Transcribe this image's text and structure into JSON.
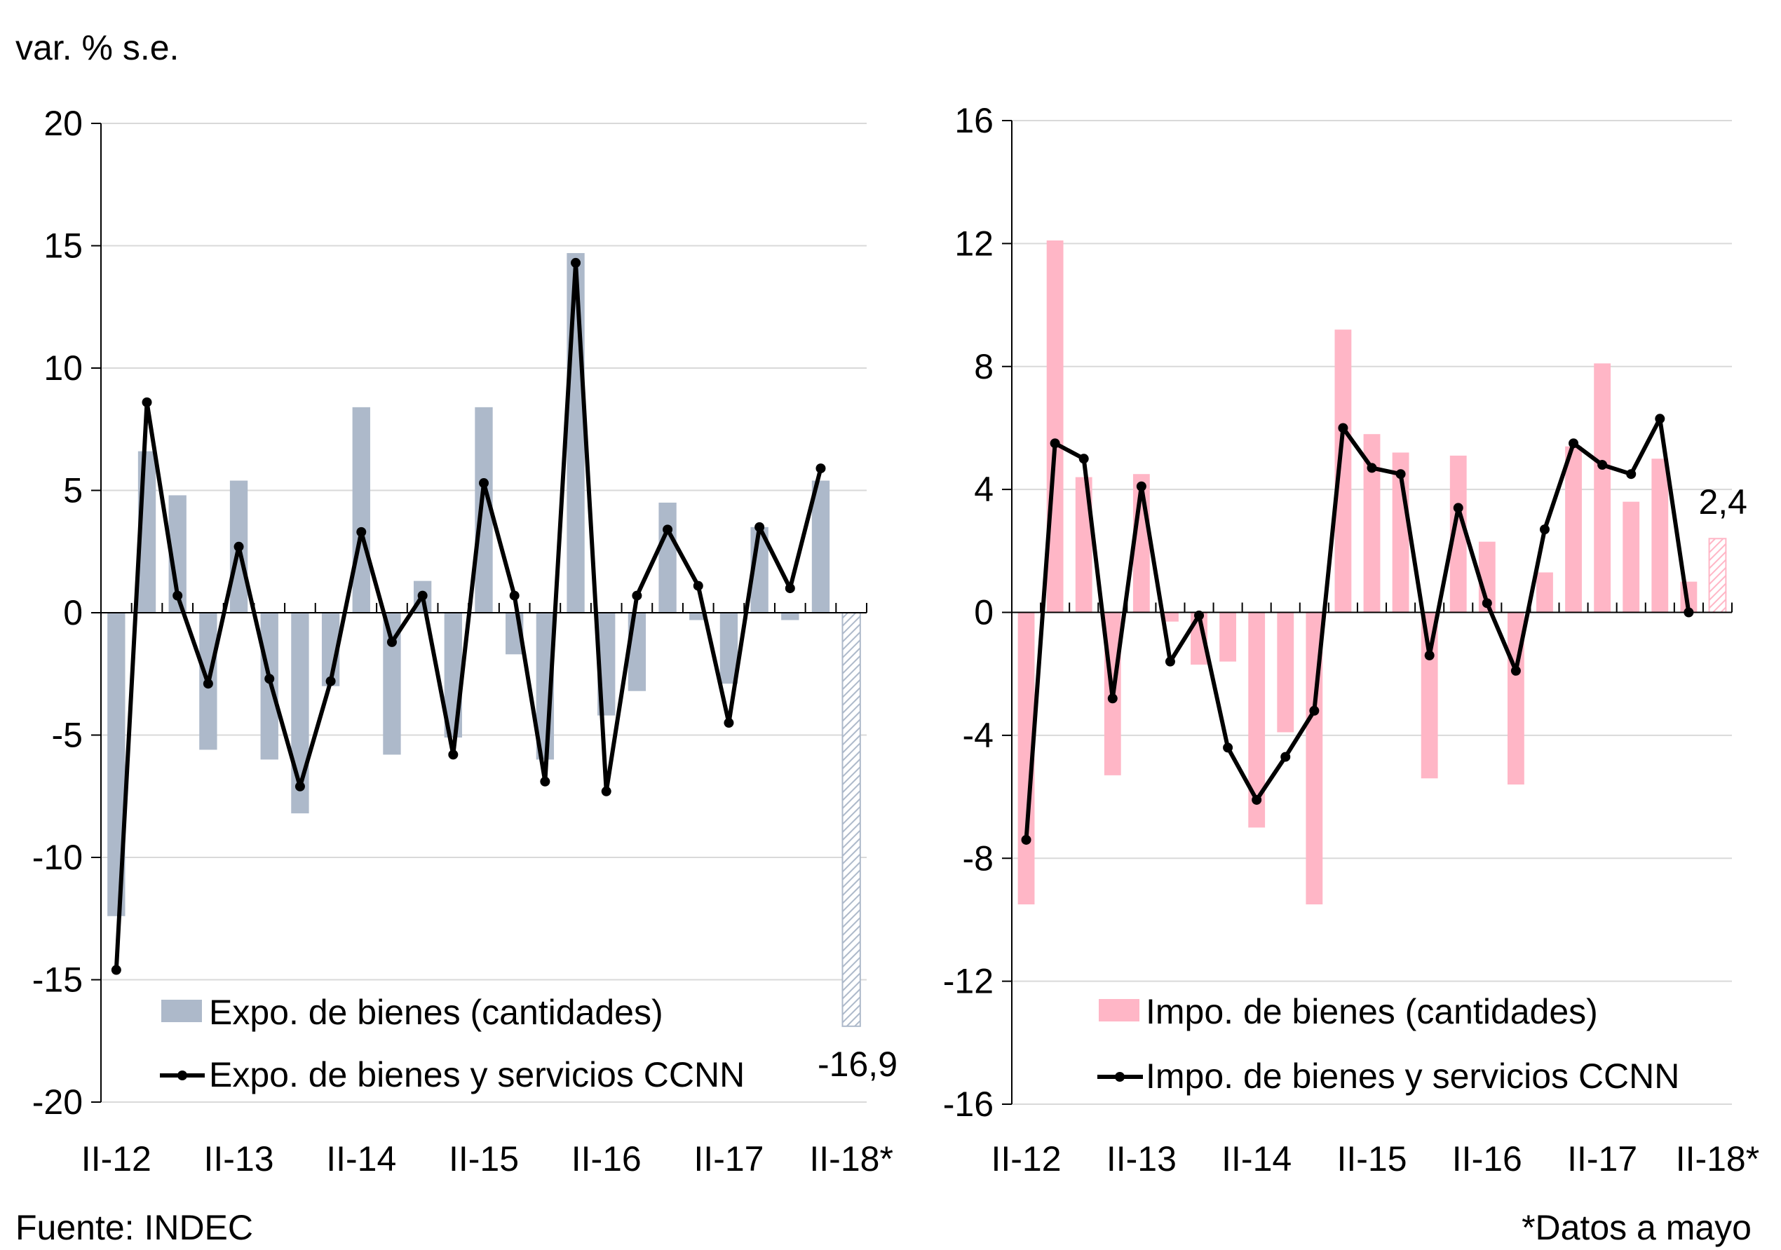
{
  "header": {
    "unit_label": "var. % s.e."
  },
  "footer": {
    "source": "Fuente:  INDEC",
    "note": "*Datos a mayo"
  },
  "colors": {
    "exports_bar": "#ADB9CA",
    "imports_bar": "#FFB6C6",
    "line": "#000000",
    "exports_annotation": "#44546A",
    "imports_annotation": "#F4617F"
  },
  "chart_data": [
    {
      "type": "bar+line",
      "categories": [
        "II-12",
        "III-12",
        "IV-12",
        "I-13",
        "II-13",
        "III-13",
        "IV-13",
        "I-14",
        "II-14",
        "III-14",
        "IV-14",
        "I-15",
        "II-15",
        "III-15",
        "IV-15",
        "I-16",
        "II-16",
        "III-16",
        "IV-16",
        "I-17",
        "II-17",
        "III-17",
        "IV-17",
        "I-18",
        "II-18*"
      ],
      "xtick_labels": [
        "II-12",
        "II-13",
        "II-14",
        "II-15",
        "II-16",
        "II-17",
        "II-18*"
      ],
      "ylim": [
        -20,
        20
      ],
      "yticks": [
        "20",
        "15",
        "10",
        "5",
        "0",
        "-5",
        "-10",
        "-15",
        "-20"
      ],
      "ytick_values": [
        20,
        15,
        10,
        5,
        0,
        -5,
        -10,
        -15,
        -20
      ],
      "grid": true,
      "series": [
        {
          "name": "Expo. de bienes (cantidades)",
          "kind": "bar",
          "values": [
            -12.4,
            6.6,
            4.8,
            -5.6,
            5.4,
            -6.0,
            -8.2,
            -3.0,
            8.4,
            -5.8,
            1.3,
            -5.1,
            8.4,
            -1.7,
            -6.0,
            14.7,
            -4.2,
            -3.2,
            4.5,
            -0.3,
            -2.9,
            3.5,
            -0.3,
            5.4,
            -16.9
          ],
          "hatched_last": true
        },
        {
          "name": "Expo. de bienes  y servicios CCNN",
          "kind": "line",
          "values": [
            -14.6,
            8.6,
            0.7,
            -2.9,
            2.7,
            -2.7,
            -7.1,
            -2.8,
            3.3,
            -1.2,
            0.7,
            -5.8,
            5.3,
            0.7,
            -6.9,
            14.3,
            -7.3,
            0.7,
            3.4,
            1.1,
            -4.5,
            3.5,
            1.0,
            5.9,
            null
          ]
        }
      ],
      "annotation": "-16,9",
      "legend": "bottom-left"
    },
    {
      "type": "bar+line",
      "categories": [
        "II-12",
        "III-12",
        "IV-12",
        "I-13",
        "II-13",
        "III-13",
        "IV-13",
        "I-14",
        "II-14",
        "III-14",
        "IV-14",
        "I-15",
        "II-15",
        "III-15",
        "IV-15",
        "I-16",
        "II-16",
        "III-16",
        "IV-16",
        "I-17",
        "II-17",
        "III-17",
        "IV-17",
        "I-18",
        "II-18*"
      ],
      "xtick_labels": [
        "II-12",
        "II-13",
        "II-14",
        "II-15",
        "II-16",
        "II-17",
        "II-18*"
      ],
      "ylim": [
        -16,
        16
      ],
      "yticks": [
        "16",
        "12",
        "8",
        "4",
        "0",
        "-4",
        "-8",
        "-12",
        "-16"
      ],
      "ytick_values": [
        16,
        12,
        8,
        4,
        0,
        -4,
        -8,
        -12,
        -16
      ],
      "grid": true,
      "series": [
        {
          "name": "Impo. de bienes (cantidades)",
          "kind": "bar",
          "values": [
            -9.5,
            12.1,
            4.4,
            -5.3,
            4.5,
            -0.3,
            -1.7,
            -1.6,
            -7.0,
            -3.9,
            -9.5,
            9.2,
            5.8,
            5.2,
            -5.4,
            5.1,
            2.3,
            -5.6,
            1.3,
            5.4,
            8.1,
            3.6,
            5.0,
            1.0,
            2.4
          ],
          "hatched_last": true
        },
        {
          "name": "Impo. de bienes y servicios CCNN",
          "kind": "line",
          "values": [
            -7.4,
            5.5,
            5.0,
            -2.8,
            4.1,
            -1.6,
            -0.1,
            -4.4,
            -6.1,
            -4.7,
            -3.2,
            6.0,
            4.7,
            4.5,
            -1.4,
            3.4,
            0.3,
            -1.9,
            2.7,
            5.5,
            4.8,
            4.5,
            6.3,
            0.0,
            null
          ]
        }
      ],
      "annotation": "2,4",
      "legend": "bottom-left"
    }
  ]
}
